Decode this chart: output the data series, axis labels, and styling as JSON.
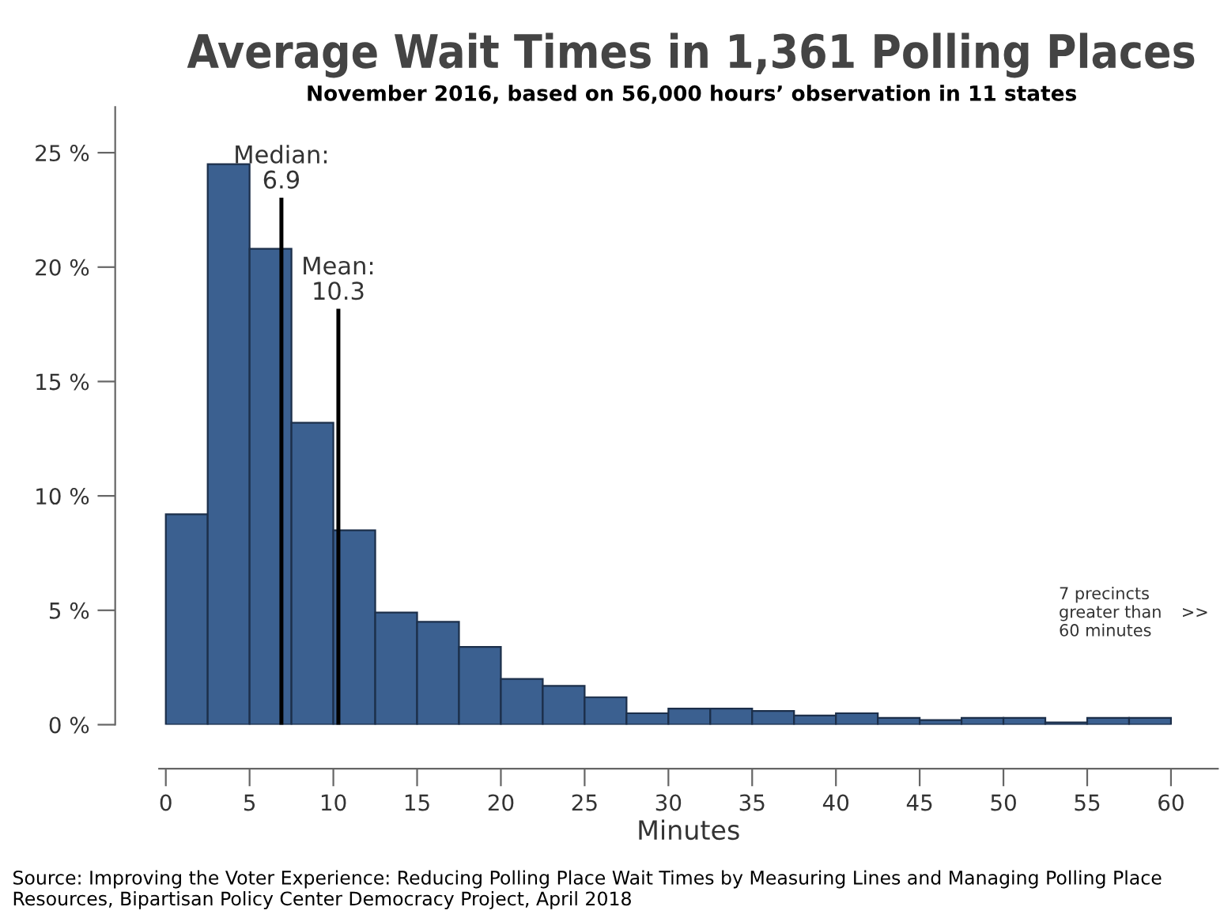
{
  "chart_data": {
    "type": "histogram",
    "title": "Average Wait Times in 1,361 Polling Places",
    "subtitle": "November 2016, based on 56,000 hours’ observation in 11 states",
    "xlabel": "Minutes",
    "bins": [
      0,
      2.5,
      5,
      7.5,
      10,
      12.5,
      15,
      17.5,
      20,
      22.5,
      25,
      27.5,
      30,
      32.5,
      35,
      37.5,
      40,
      42.5,
      45,
      47.5,
      50,
      52.5,
      55,
      57.5,
      60
    ],
    "values": [
      9.2,
      24.5,
      20.8,
      13.2,
      8.5,
      4.9,
      4.5,
      3.4,
      2.0,
      1.7,
      1.2,
      0.5,
      0.7,
      0.7,
      0.6,
      0.4,
      0.5,
      0.3,
      0.2,
      0.3,
      0.3,
      0.1,
      0.3,
      0.3
    ],
    "color": "#3b6090",
    "xlim": [
      -0.4,
      62.8
    ],
    "xticks": [
      0,
      5,
      10,
      15,
      20,
      25,
      30,
      35,
      40,
      45,
      50,
      55,
      60
    ],
    "ylim": [
      0,
      27
    ],
    "yticks": [
      {
        "value": 0,
        "label": "0 %"
      },
      {
        "value": 5,
        "label": "5 %"
      },
      {
        "value": 10,
        "label": "10 %"
      },
      {
        "value": 15,
        "label": "15 %"
      },
      {
        "value": 20,
        "label": "20 %"
      },
      {
        "value": 25,
        "label": "25 %"
      }
    ],
    "ref_lines": [
      {
        "axis": "x",
        "value": 6.9,
        "label": "Median:\n6.9",
        "color": "#000000"
      },
      {
        "axis": "x",
        "value": 10.3,
        "label": "Mean:\n10.3",
        "color": "#000000"
      }
    ],
    "annotations": [
      "7 precincts\ngreater than\n60 minutes",
      ">>",
      "Source: Improving the Voter Experience: Reducing Polling Place Wait Times by Measuring Lines and Managing Polling Place Resources, Bipartisan Policy Center Democracy Project, April 2018"
    ],
    "grid": false,
    "legend": false
  }
}
